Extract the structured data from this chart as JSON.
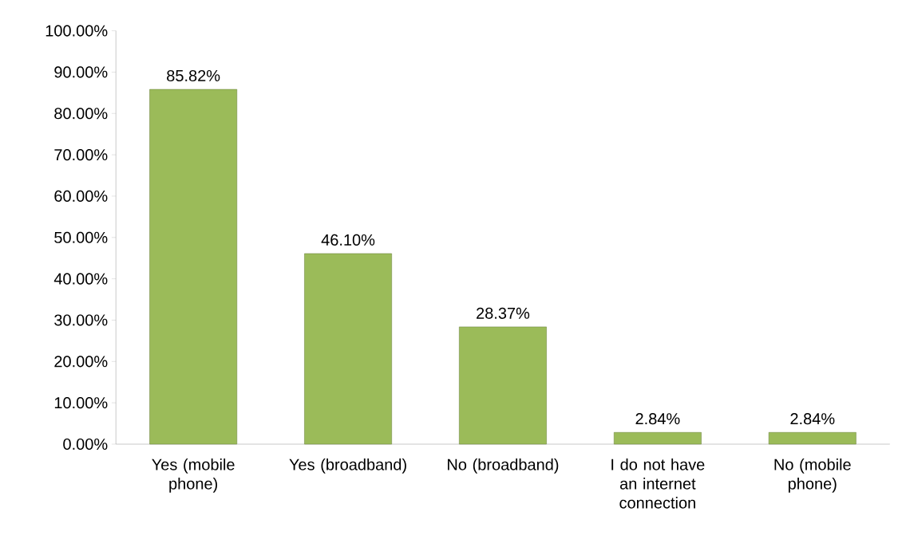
{
  "chart_data": {
    "type": "bar",
    "categories": [
      "Yes (mobile phone)",
      "Yes (broadband)",
      "No (broadband)",
      "I do not have an internet connection",
      "No (mobile phone)"
    ],
    "values": [
      85.82,
      46.1,
      28.37,
      2.84,
      2.84
    ],
    "value_labels": [
      "85.82%",
      "46.10%",
      "28.37%",
      "2.84%",
      "2.84%"
    ],
    "color": "#9bbb59",
    "ylim": [
      0,
      100
    ],
    "yticks": [
      {
        "value": 0,
        "label": "0.00%"
      },
      {
        "value": 10,
        "label": "10.00%"
      },
      {
        "value": 20,
        "label": "20.00%"
      },
      {
        "value": 30,
        "label": "30.00%"
      },
      {
        "value": 40,
        "label": "40.00%"
      },
      {
        "value": 50,
        "label": "50.00%"
      },
      {
        "value": 60,
        "label": "60.00%"
      },
      {
        "value": 70,
        "label": "70.00%"
      },
      {
        "value": 80,
        "label": "80.00%"
      },
      {
        "value": 90,
        "label": "90.00%"
      },
      {
        "value": 100,
        "label": "100.00%"
      }
    ]
  }
}
